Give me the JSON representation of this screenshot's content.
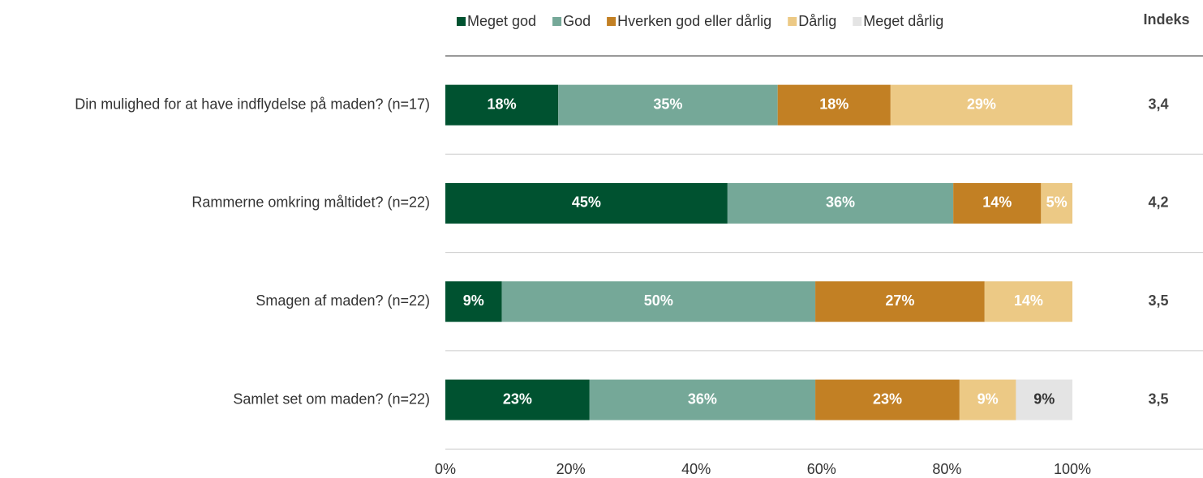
{
  "chart_data": {
    "type": "stacked_bar_horizontal",
    "categories": [
      "Din mulighed for at have indflydelse på maden? (n=17)",
      "Rammerne omkring måltidet? (n=22)",
      "Smagen af maden? (n=22)",
      "Samlet set om maden? (n=22)"
    ],
    "series": [
      {
        "name": "Meget god",
        "color": "#005230",
        "label_color": "#ffffff",
        "values": [
          18,
          45,
          9,
          23
        ],
        "value_labels": [
          "18%",
          "45%",
          "9%",
          "23%"
        ]
      },
      {
        "name": "God",
        "color": "#75a898",
        "label_color": "#ffffff",
        "values": [
          35,
          36,
          50,
          36
        ],
        "value_labels": [
          "35%",
          "36%",
          "50%",
          "36%"
        ]
      },
      {
        "name": "Hverken god eller dårlig",
        "color": "#c28024",
        "label_color": "#ffffff",
        "values": [
          18,
          14,
          27,
          23
        ],
        "value_labels": [
          "18%",
          "14%",
          "27%",
          "23%"
        ]
      },
      {
        "name": "Dårlig",
        "color": "#ecc985",
        "label_color": "#ffffff",
        "values": [
          29,
          5,
          14,
          9
        ],
        "value_labels": [
          "29%",
          "5%",
          "14%",
          "9%"
        ]
      },
      {
        "name": "Meget dårlig",
        "color": "#e4e4e4",
        "label_color": "#333333",
        "values": [
          null,
          null,
          null,
          9
        ],
        "value_labels": [
          null,
          null,
          null,
          "9%"
        ]
      }
    ],
    "xlim": [
      0,
      100
    ],
    "xticks": [
      {
        "value": 0,
        "label": "0%"
      },
      {
        "value": 20,
        "label": "20%"
      },
      {
        "value": 40,
        "label": "40%"
      },
      {
        "value": 60,
        "label": "60%"
      },
      {
        "value": 80,
        "label": "80%"
      },
      {
        "value": 100,
        "label": "100%"
      }
    ],
    "index": {
      "title": "Indeks",
      "values": [
        3.4,
        4.2,
        3.5,
        3.5
      ],
      "value_labels": [
        "3,4",
        "4,2",
        "3,5",
        "3,5"
      ]
    }
  }
}
